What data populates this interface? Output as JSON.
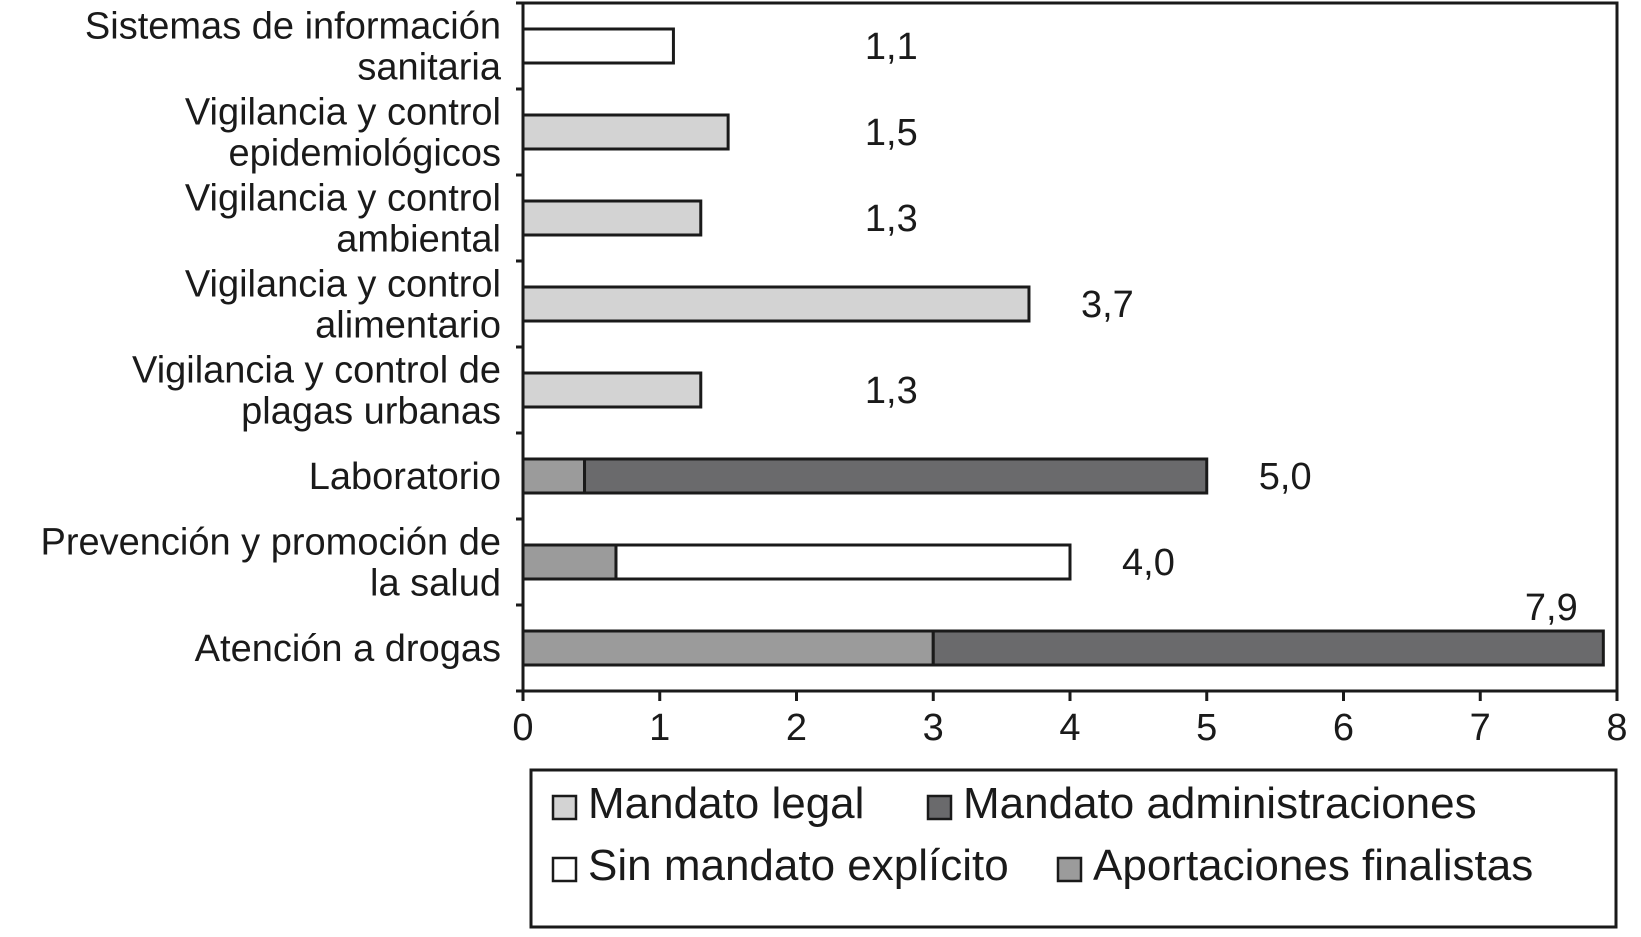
{
  "chart_data": {
    "type": "bar",
    "orientation": "horizontal",
    "stacked": true,
    "title": "",
    "xlabel": "",
    "ylabel": "",
    "xlim": [
      0,
      8
    ],
    "xticks": [
      0,
      1,
      2,
      3,
      4,
      5,
      6,
      7,
      8
    ],
    "grid": false,
    "legend_position": "bottom",
    "categories": [
      [
        "Sistemas de información",
        "sanitaria"
      ],
      [
        "Vigilancia y control",
        "epidemiológicos"
      ],
      [
        "Vigilancia y control",
        "ambiental"
      ],
      [
        "Vigilancia y control",
        "alimentario"
      ],
      [
        "Vigilancia y control de",
        "plagas urbanas"
      ],
      [
        "Laboratorio"
      ],
      [
        "Prevención y promoción de",
        "la salud"
      ],
      [
        "Atención a drogas"
      ]
    ],
    "series": [
      {
        "name": "Aportaciones finalistas",
        "color": "#9b9b9b",
        "values": [
          0,
          0,
          0,
          0,
          0,
          0.45,
          0.68,
          3.0
        ]
      },
      {
        "name": "Mandato legal",
        "color": "#d3d3d3",
        "values": [
          0,
          1.5,
          1.3,
          3.7,
          1.3,
          0,
          0,
          0
        ]
      },
      {
        "name": "Mandato administraciones",
        "color": "#6a6a6c",
        "values": [
          0,
          0,
          0,
          0,
          0,
          4.55,
          0,
          4.9
        ]
      },
      {
        "name": "Sin mandato explícito",
        "color": "#ffffff",
        "values": [
          1.1,
          0,
          0,
          0,
          0,
          0,
          3.32,
          0
        ]
      }
    ],
    "totals_labels": [
      "1,1",
      "1,5",
      "1,3",
      "3,7",
      "1,3",
      "5,0",
      "4,0",
      "7,9"
    ],
    "legend": [
      [
        "Mandato legal",
        "Mandato administraciones"
      ],
      [
        "Sin mandato explícito",
        "Aportaciones finalistas"
      ]
    ]
  }
}
